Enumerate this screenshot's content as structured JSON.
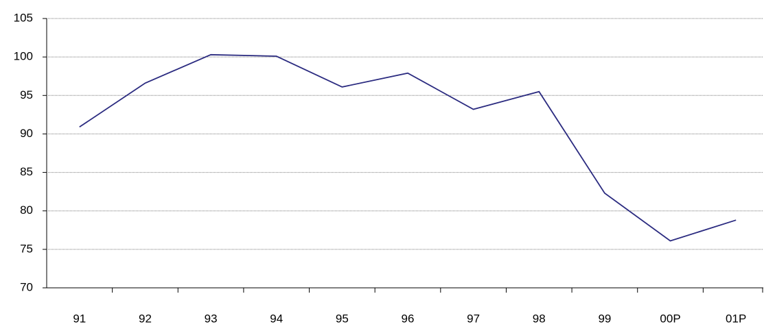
{
  "chart_data": {
    "type": "line",
    "categories": [
      "91",
      "92",
      "93",
      "94",
      "95",
      "96",
      "97",
      "98",
      "99",
      "00P",
      "01P"
    ],
    "series": [
      {
        "color": "#2b2b80",
        "values": [
          90.9,
          96.6,
          100.3,
          100.1,
          96.1,
          97.9,
          93.2,
          95.5,
          82.3,
          76.1,
          78.8
        ]
      }
    ],
    "ylim": [
      70,
      105
    ],
    "yticks": [
      70,
      75,
      80,
      85,
      90,
      95,
      100,
      105
    ],
    "grid": true
  }
}
